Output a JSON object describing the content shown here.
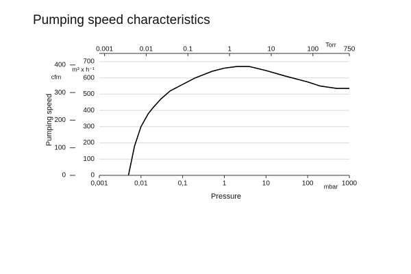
{
  "chart_data": {
    "type": "line",
    "title": "Pumping speed characteristics",
    "x_label": "Pressure",
    "y_label": "Pumping speed",
    "x_unit": "mbar",
    "x2_unit": "Torr",
    "y_unit": "m³ x h⁻¹",
    "y2_unit": "cfm",
    "x_scale": "log",
    "x2_scale": "log",
    "x": [
      0.005,
      0.007,
      0.01,
      0.015,
      0.02,
      0.03,
      0.05,
      0.1,
      0.2,
      0.5,
      1,
      2,
      4,
      10,
      30,
      100,
      200,
      500,
      1000
    ],
    "series": [
      {
        "name": "Pumping speed",
        "color": "#000000",
        "values": [
          0,
          180,
          300,
          380,
          420,
          470,
          520,
          560,
          600,
          640,
          660,
          670,
          670,
          645,
          610,
          575,
          550,
          535,
          535
        ]
      }
    ],
    "xlim": [
      0.001,
      1000
    ],
    "xticks": [
      {
        "value": 0.001,
        "label": "0,001"
      },
      {
        "value": 0.01,
        "label": "0,01"
      },
      {
        "value": 0.1,
        "label": "0,1"
      },
      1,
      10,
      100,
      1000
    ],
    "x2lim": [
      0.00075,
      750
    ],
    "x2ticks": [
      0.001,
      0.01,
      0.1,
      1,
      10,
      100,
      750
    ],
    "ylim": [
      0,
      700
    ],
    "yticks": [
      0,
      100,
      200,
      300,
      400,
      500,
      600,
      700
    ],
    "y2lim": [
      0,
      412
    ],
    "y2ticks": [
      0,
      100,
      200,
      300,
      400
    ],
    "grid": true
  }
}
